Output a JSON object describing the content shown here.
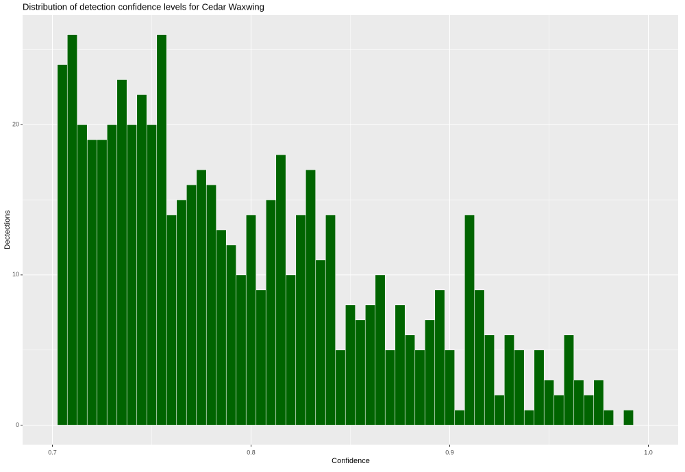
{
  "chart_data": {
    "type": "histogram",
    "title": "Distribution of detection confidence levels for Cedar Waxwing",
    "x_label": "Confidence",
    "y_label": "Dectections",
    "bins": [
      0.7025,
      0.7075,
      0.7125,
      0.7175,
      0.7225,
      0.7275,
      0.7325,
      0.7375,
      0.7425,
      0.7475,
      0.7525,
      0.7575,
      0.7625,
      0.7675,
      0.7725,
      0.7775,
      0.7825,
      0.7875,
      0.7925,
      0.7975,
      0.8025,
      0.8075,
      0.8125,
      0.8175,
      0.8225,
      0.8275,
      0.8325,
      0.8375,
      0.8425,
      0.8475,
      0.8525,
      0.8575,
      0.8625,
      0.8675,
      0.8725,
      0.8775,
      0.8825,
      0.8875,
      0.8925,
      0.8975,
      0.9025,
      0.9075,
      0.9125,
      0.9175,
      0.9225,
      0.9275,
      0.9325,
      0.9375,
      0.9425,
      0.9475,
      0.9525,
      0.9575,
      0.9625,
      0.9675,
      0.9725,
      0.9775,
      0.9825,
      0.9875,
      0.9925
    ],
    "counts": [
      24,
      26,
      20,
      19,
      19,
      20,
      23,
      20,
      22,
      20,
      26,
      14,
      15,
      16,
      17,
      16,
      13,
      12,
      10,
      14,
      9,
      15,
      18,
      10,
      14,
      17,
      11,
      14,
      5,
      8,
      7,
      8,
      10,
      5,
      8,
      6,
      5,
      7,
      9,
      5,
      1,
      14,
      9,
      6,
      2,
      6,
      5,
      1,
      5,
      3,
      2,
      6,
      3,
      2,
      3,
      1,
      0,
      1
    ],
    "color": "#006400",
    "xlim": [
      0.685,
      1.015
    ],
    "ylim": [
      -1.3,
      27.3
    ],
    "xticks": [
      0.7,
      0.8,
      0.9,
      {
        "value": 1,
        "label": "1.0"
      }
    ],
    "yticks": [
      0,
      10,
      20
    ],
    "xminor": [
      0.75,
      0.85,
      0.95
    ],
    "yminor": [
      5,
      15,
      25
    ],
    "grid": true
  }
}
